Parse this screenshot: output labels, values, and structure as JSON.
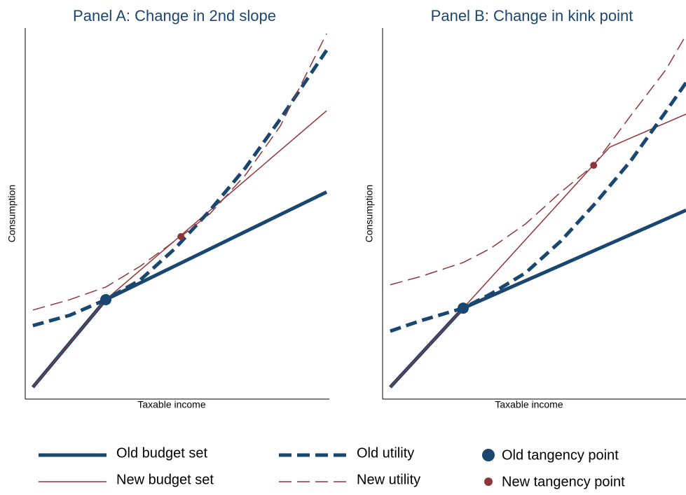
{
  "chart_data": [
    {
      "type": "line",
      "title": "Panel A: Change in 2nd slope",
      "xlabel": "Taxable income",
      "ylabel": "Consumption",
      "xlim": [
        0,
        100
      ],
      "ylim": [
        0,
        100
      ],
      "series": [
        {
          "name": "Old budget set",
          "color": "#1a476f",
          "linestyle": "solid",
          "weight": "thick",
          "x": [
            2.5,
            26.5,
            99.1
          ],
          "values": [
            3.2,
            26.8,
            55.8
          ]
        },
        {
          "name": "New budget set",
          "color": "#90353b",
          "linestyle": "solid",
          "weight": "thin",
          "x": [
            2.5,
            26.5,
            99.1
          ],
          "values": [
            3.2,
            26.8,
            77.7
          ]
        },
        {
          "name": "Old utility",
          "color": "#1a476f",
          "linestyle": "dashed",
          "weight": "thick",
          "x": [
            2.5,
            14.7,
            26.5,
            37.8,
            49.3,
            60.8,
            72.4,
            83.9,
            99.1
          ],
          "values": [
            19.8,
            22.6,
            26.8,
            32.1,
            40.6,
            50.9,
            62.3,
            75.5,
            94.0
          ]
        },
        {
          "name": "New utility",
          "color": "#90353b",
          "linestyle": "dashed",
          "weight": "thin",
          "x": [
            2.5,
            14.7,
            26.5,
            37.8,
            51.2,
            60.8,
            72.4,
            83.9,
            99.1
          ],
          "values": [
            24.0,
            26.8,
            30.2,
            35.8,
            43.8,
            50.0,
            60.4,
            73.6,
            98.5
          ]
        },
        {
          "name": "Old tangency point",
          "color": "#1a476f",
          "linestyle": "marker",
          "weight": "thick",
          "x": [
            26.5
          ],
          "values": [
            26.8
          ]
        },
        {
          "name": "New tangency point",
          "color": "#90353b",
          "linestyle": "marker",
          "weight": "thin",
          "x": [
            51.2
          ],
          "values": [
            43.8
          ]
        }
      ]
    },
    {
      "type": "line",
      "title": "Panel B: Change in kink point",
      "xlabel": "Taxable income",
      "ylabel": "Consumption",
      "xlim": [
        0,
        100
      ],
      "ylim": [
        0,
        100
      ],
      "series": [
        {
          "color": "#1a476f",
          "linestyle": "solid",
          "weight": "thick",
          "x": [
            2.5,
            26.5,
            99.8
          ],
          "values": [
            3.2,
            24.5,
            50.9
          ]
        },
        {
          "color": "#90353b",
          "linestyle": "solid",
          "weight": "thin",
          "x": [
            2.5,
            26.5,
            74.7,
            99.8
          ],
          "values": [
            3.2,
            24.5,
            67.9,
            76.8
          ]
        },
        {
          "color": "#1a476f",
          "linestyle": "dashed",
          "weight": "thick",
          "x": [
            2.5,
            12.4,
            26.5,
            35.5,
            47.0,
            58.5,
            70.0,
            81.6,
            93.1,
            99.8
          ],
          "values": [
            18.3,
            21.1,
            24.5,
            28.3,
            34.0,
            42.5,
            52.8,
            64.2,
            77.4,
            85.3
          ]
        },
        {
          "color": "#90353b",
          "linestyle": "dashed",
          "weight": "thin",
          "x": [
            2.5,
            12.4,
            26.5,
            35.5,
            47.0,
            58.5,
            69.4,
            81.6,
            93.1,
            99.8
          ],
          "values": [
            30.8,
            33.0,
            36.8,
            40.6,
            47.2,
            55.7,
            63.0,
            76.4,
            88.7,
            98.1
          ]
        },
        {
          "color": "#1a476f",
          "linestyle": "marker",
          "weight": "thick",
          "x": [
            26.5
          ],
          "values": [
            24.5
          ]
        },
        {
          "color": "#90353b",
          "linestyle": "marker",
          "weight": "thin",
          "x": [
            69.4
          ],
          "values": [
            63.0
          ]
        }
      ]
    }
  ]
}
